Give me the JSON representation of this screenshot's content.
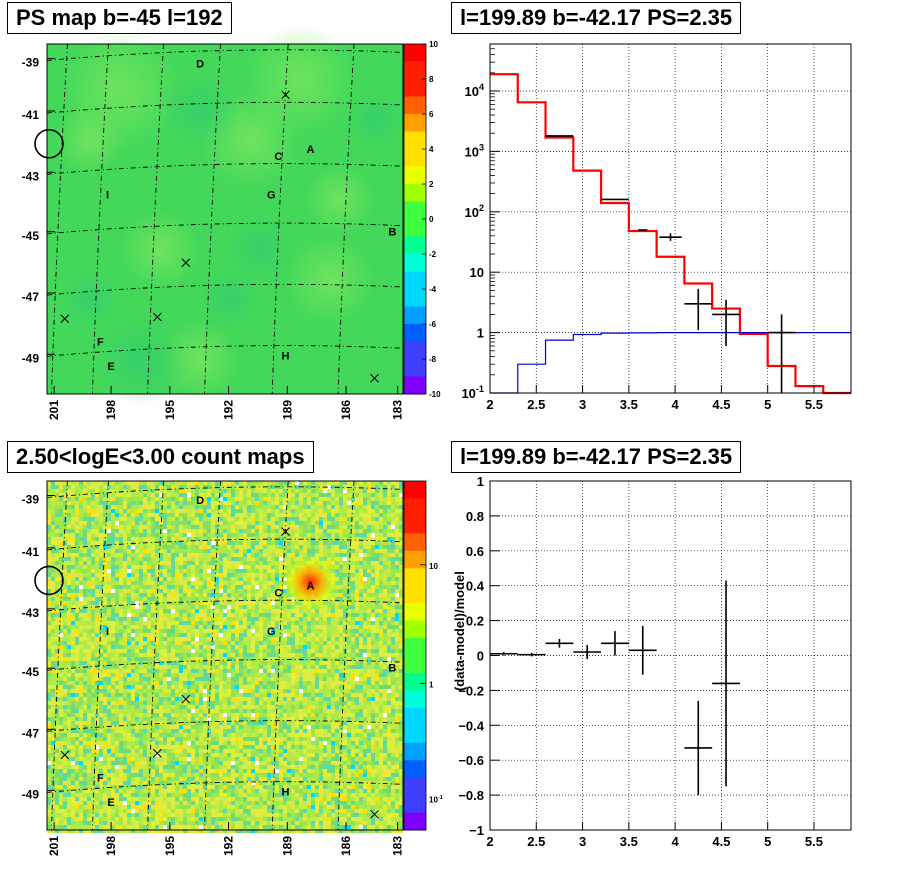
{
  "colors": {
    "map_bg": "#44d85a",
    "model_line": "#ff0000",
    "background_line": "#0000cc",
    "data_marker": "#000000",
    "palette": [
      "#7f00ff",
      "#3f3fff",
      "#0060ff",
      "#00a0ff",
      "#00d8ff",
      "#00ffd8",
      "#00ff90",
      "#40ff40",
      "#a0ff00",
      "#e8ff00",
      "#ffe000",
      "#ffa000",
      "#ff6000",
      "#ff2000",
      "#ff0000"
    ]
  },
  "chart_data": [
    {
      "type": "heatmap",
      "title": "PS map b=-45 l=192",
      "ylabels": [
        "-39",
        "-41",
        "-43",
        "-45",
        "-47",
        "-49"
      ],
      "xlabels": [
        "201",
        "198",
        "195",
        "192",
        "189",
        "186",
        "183"
      ],
      "colorbar": {
        "labels": [
          "10",
          "8",
          "6",
          "4",
          "2",
          "0",
          "-2",
          "-4",
          "-6",
          "-8",
          "-10"
        ],
        "scale": "linear",
        "range": [
          -10,
          10
        ]
      },
      "sources": [
        "D",
        "A",
        "C",
        "I",
        "G",
        "B",
        "F",
        "E",
        "H"
      ],
      "markers": "x",
      "circle": true
    },
    {
      "type": "line",
      "title": "l=199.89 b=-42.17 PS=2.35",
      "log_y": true,
      "xlim": [
        2,
        5.9
      ],
      "ylim": [
        0.1,
        60000
      ],
      "xticks": [
        "2",
        "2.5",
        "3",
        "3.5",
        "4",
        "4.5",
        "5",
        "5.5"
      ],
      "ytick_mantissa": [
        "10",
        "10",
        "10",
        "10"
      ],
      "ytick_exponent": [
        "4",
        "3",
        "2",
        "-1"
      ],
      "ytick_plain": [
        "10",
        "1"
      ],
      "series": [
        {
          "kind": "step",
          "color": "red",
          "edges": [
            2.0,
            2.3,
            2.6,
            2.9,
            3.2,
            3.5,
            3.8,
            4.1,
            4.4,
            4.7,
            5.0,
            5.3,
            5.6,
            5.9
          ],
          "values": [
            19000,
            6500,
            1700,
            480,
            140,
            48,
            18,
            6.5,
            2.5,
            0.95,
            0.28,
            0.13,
            0.1
          ]
        },
        {
          "kind": "step",
          "color": "blue",
          "edges": [
            2.0,
            2.3,
            2.6,
            2.9,
            3.2,
            3.5,
            3.8,
            4.1,
            4.4,
            4.7,
            5.0,
            5.3,
            5.6,
            5.9
          ],
          "values": [
            0.05,
            0.3,
            0.75,
            0.93,
            0.98,
            0.99,
            1.0,
            1.0,
            1.0,
            1.0,
            1.0,
            1.0,
            1.0
          ]
        },
        {
          "kind": "errorbar",
          "color": "black",
          "points": [
            {
              "x": 2.75,
              "y": 1800,
              "xerr": 0.15
            },
            {
              "x": 3.35,
              "y": 160,
              "xerr": 0.15
            },
            {
              "x": 3.65,
              "y": 50,
              "xerr": 0.05
            },
            {
              "x": 3.95,
              "y": 38,
              "xerr": 0.12,
              "ylo": 33,
              "yhi": 44
            },
            {
              "x": 4.25,
              "y": 3.0,
              "xerr": 0.15,
              "ylo": 1.1,
              "yhi": 5.3
            },
            {
              "x": 4.55,
              "y": 2.0,
              "xerr": 0.15,
              "ylo": 0.6,
              "yhi": 3.5
            },
            {
              "x": 5.15,
              "y": 1.0,
              "xerr": 0.15,
              "ylo": 0.1,
              "yhi": 2.0
            }
          ]
        }
      ]
    },
    {
      "type": "heatmap",
      "title": "2.50<logE<3.00 count maps",
      "ylabels": [
        "-39",
        "-41",
        "-43",
        "-45",
        "-47",
        "-49"
      ],
      "xlabels": [
        "201",
        "198",
        "195",
        "192",
        "189",
        "186",
        "183"
      ],
      "colorbar": {
        "labels": [
          "10",
          "1"
        ],
        "label_low_mantissa": "10",
        "label_low_exponent": "-1",
        "scale": "log"
      },
      "sources": [
        "D",
        "A",
        "C",
        "I",
        "G",
        "B",
        "F",
        "E",
        "H"
      ],
      "markers": "x",
      "circle": true
    },
    {
      "type": "scatter",
      "title": "l=199.89 b=-42.17 PS=2.35",
      "ylabel": "(data-model)/model",
      "xlim": [
        2,
        5.9
      ],
      "ylim": [
        -1,
        1
      ],
      "xticks": [
        "2",
        "2.5",
        "3",
        "3.5",
        "4",
        "4.5",
        "5",
        "5.5"
      ],
      "yticks": [
        "1",
        "0.8",
        "0.6",
        "0.4",
        "0.2",
        "0",
        "−0.2",
        "−0.4",
        "−0.6",
        "−0.8",
        "−1"
      ],
      "points": [
        {
          "x": 2.15,
          "y": 0.01,
          "xerr": 0.15,
          "yerr": 0.01
        },
        {
          "x": 2.45,
          "y": 0.005,
          "xerr": 0.15,
          "yerr": 0.01
        },
        {
          "x": 2.75,
          "y": 0.07,
          "xerr": 0.15,
          "yerr": 0.025
        },
        {
          "x": 3.05,
          "y": 0.02,
          "xerr": 0.15,
          "yerr": 0.04
        },
        {
          "x": 3.35,
          "y": 0.07,
          "xerr": 0.15,
          "yerr": 0.07
        },
        {
          "x": 3.65,
          "y": 0.03,
          "xerr": 0.15,
          "yerr": 0.14
        },
        {
          "x": 4.25,
          "y": -0.53,
          "xerr": 0.15,
          "yerr": 0.27
        },
        {
          "x": 4.55,
          "y": -0.16,
          "xerr": 0.15,
          "yerr": 0.59
        }
      ]
    }
  ]
}
